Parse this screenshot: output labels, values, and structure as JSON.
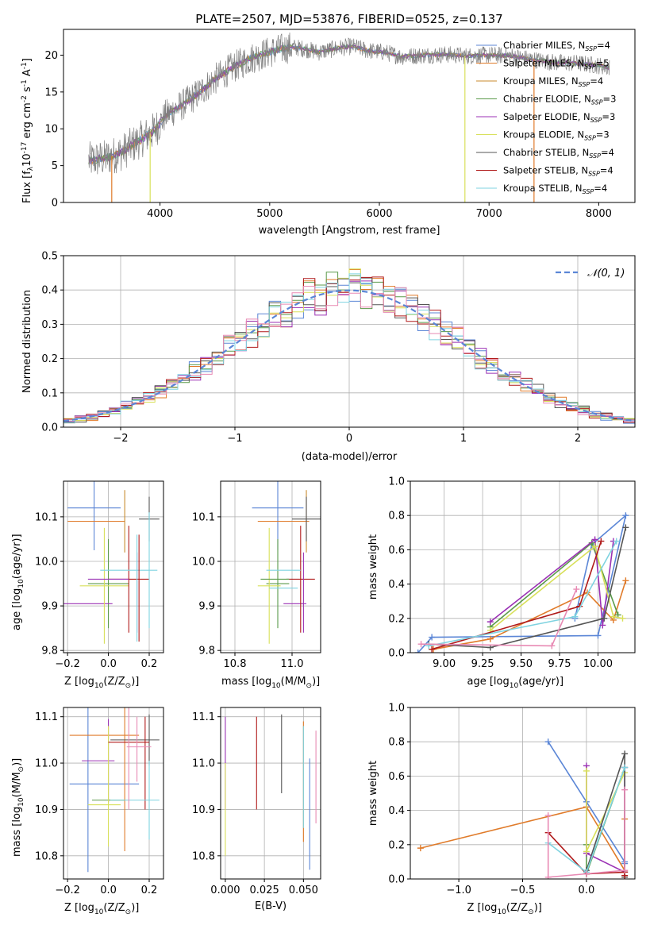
{
  "figure": {
    "title": "PLATE=2507, MJD=53876, FIBERID=0525, z=0.137"
  },
  "models": [
    {
      "name": "Chabrier MILES",
      "nssp": "4",
      "color": "#5b86d6"
    },
    {
      "name": "Salpeter MILES",
      "nssp": "5",
      "color": "#e07b2a"
    },
    {
      "name": "Kroupa MILES",
      "nssp": "4",
      "color": "#c88a2e"
    },
    {
      "name": "Chabrier ELODIE",
      "nssp": "3",
      "color": "#5a9a4a"
    },
    {
      "name": "Salpeter ELODIE",
      "nssp": "3",
      "color": "#9b32b5"
    },
    {
      "name": "Kroupa ELODIE",
      "nssp": "3",
      "color": "#d8e05a"
    },
    {
      "name": "Chabrier STELIB",
      "nssp": "4",
      "color": "#555555"
    },
    {
      "name": "Salpeter STELIB",
      "nssp": "4",
      "color": "#b01a1a"
    },
    {
      "name": "Kroupa STELIB",
      "nssp": "4",
      "color": "#7fd3e0"
    }
  ],
  "chart_data": [
    {
      "id": "spectrum",
      "type": "line",
      "xlabel": "wavelength [Angstrom, rest frame]",
      "ylabel_parts": [
        "Flux [f",
        "λ",
        "10",
        "-17",
        " erg cm",
        "-2",
        " s",
        "-1",
        " A",
        "-1",
        "]"
      ],
      "xlim": [
        3120,
        8330
      ],
      "ylim": [
        0,
        23.5
      ],
      "xticks": [
        4000,
        5000,
        6000,
        7000,
        8000
      ],
      "yticks": [
        0,
        5,
        10,
        15,
        20
      ],
      "legend_placement": "right",
      "continuum": {
        "x": [
          3350,
          3500,
          3650,
          3800,
          3950,
          4050,
          4200,
          4350,
          4500,
          4650,
          4800,
          4950,
          5100,
          5200,
          5300,
          5450,
          5600,
          5750,
          5900,
          6050,
          6200,
          6400,
          6600,
          6800,
          7000,
          7200,
          7400,
          7600,
          7800,
          8000,
          8100
        ],
        "y": [
          5.7,
          6.0,
          6.8,
          8.3,
          9.8,
          11.8,
          13.2,
          14.8,
          16.7,
          18.2,
          19.4,
          20.2,
          20.8,
          21.1,
          20.9,
          20.4,
          20.9,
          21.2,
          20.6,
          20.4,
          19.8,
          20.0,
          20.1,
          19.9,
          20.0,
          19.9,
          19.4,
          19.0,
          18.9,
          18.6,
          18.3
        ]
      },
      "dropouts": [
        {
          "x": 3560,
          "color": "#e07b2a"
        },
        {
          "x": 3910,
          "color": "#d8e05a"
        },
        {
          "x": 6780,
          "color": "#d8e05a"
        },
        {
          "x": 7410,
          "color": "#e07b2a"
        }
      ]
    },
    {
      "id": "residuals",
      "type": "step-histogram",
      "xlabel": "(data-model)/error",
      "ylabel": "Normed distribution",
      "xlim": [
        -2.5,
        2.5
      ],
      "ylim": [
        0,
        0.5
      ],
      "xticks": [
        -2,
        -1,
        0,
        1,
        2
      ],
      "yticks": [
        0.0,
        0.1,
        0.2,
        0.3,
        0.4,
        0.5
      ],
      "bin_width": 0.1,
      "reference_curve_label": "𝒩(0, 1)",
      "reference_curve_color": "#5b86d6",
      "legend_placement": "top-right",
      "grid": true
    },
    {
      "id": "age-vs-Z",
      "type": "errorbar",
      "xlabel_parts": [
        "Z [log",
        "10",
        "(Z/Z",
        "⊙",
        ")]"
      ],
      "ylabel_parts": [
        "age  [log",
        "10",
        "(age/yr)]"
      ],
      "xlim": [
        -0.22,
        0.27
      ],
      "ylim": [
        9.795,
        10.18
      ],
      "xticks": [
        -0.2,
        0.0,
        0.2
      ],
      "yticks": [
        9.8,
        9.9,
        10.0,
        10.1
      ],
      "grid": true,
      "points": [
        {
          "x": -0.07,
          "y": 10.12,
          "xerr": 0.13,
          "yerr": 0.095,
          "model": 0
        },
        {
          "x": -0.06,
          "y": 10.09,
          "xerr": 0.14,
          "yerr": 0.0,
          "model": 1
        },
        {
          "x": 0.08,
          "y": 10.09,
          "xerr": 0.0,
          "yerr": 0.07,
          "model": 2
        },
        {
          "x": 0.0,
          "y": 9.95,
          "xerr": 0.1,
          "yerr": 0.1,
          "model": 3
        },
        {
          "x": -0.1,
          "y": 9.905,
          "xerr": 0.12,
          "yerr": 0.0,
          "model": 4
        },
        {
          "x": -0.02,
          "y": 9.945,
          "xerr": 0.12,
          "yerr": 0.13,
          "model": 5
        },
        {
          "x": 0.2,
          "y": 10.095,
          "xerr": 0.05,
          "yerr": 0.05,
          "model": 6
        },
        {
          "x": 0.1,
          "y": 9.96,
          "xerr": 0.1,
          "yerr": 0.12,
          "model": 7
        },
        {
          "x": 0.1,
          "y": 9.98,
          "xerr": 0.14,
          "yerr": 0.0,
          "model": 8
        },
        {
          "x": 0.15,
          "y": 9.94,
          "xerr": 0.0,
          "yerr": 0.12,
          "model": 7
        },
        {
          "x": 0.2,
          "y": 9.98,
          "xerr": 0.0,
          "yerr": 0.13,
          "model": 8
        },
        {
          "x": 0.14,
          "y": 9.93,
          "xerr": 0.0,
          "yerr": 0.09,
          "model": 4
        },
        {
          "x": 0.0,
          "y": 9.96,
          "xerr": 0.1,
          "yerr": 0.0,
          "model": 4
        },
        {
          "x": 0.14,
          "y": 9.94,
          "xerr": 0.0,
          "yerr": 0.12,
          "model": 8
        }
      ]
    },
    {
      "id": "age-vs-mass",
      "type": "errorbar",
      "xlabel_parts": [
        "mass [log",
        "10",
        "(M/M",
        "⊙",
        ")]"
      ],
      "xlim": [
        10.75,
        11.1
      ],
      "ylim": [
        9.795,
        10.18
      ],
      "xticks": [
        10.8,
        11.0
      ],
      "yticks": [
        9.8,
        9.9,
        10.0,
        10.1
      ],
      "grid": true,
      "points": [
        {
          "x": 10.95,
          "y": 10.12,
          "xerr": 0.09,
          "yerr": 0.095,
          "model": 0
        },
        {
          "x": 10.97,
          "y": 10.09,
          "xerr": 0.09,
          "yerr": 0.0,
          "model": 1
        },
        {
          "x": 11.05,
          "y": 10.09,
          "xerr": 0.0,
          "yerr": 0.07,
          "model": 2
        },
        {
          "x": 10.95,
          "y": 9.95,
          "xerr": 0.04,
          "yerr": 0.1,
          "model": 3
        },
        {
          "x": 11.01,
          "y": 9.905,
          "xerr": 0.04,
          "yerr": 0.0,
          "model": 4
        },
        {
          "x": 10.92,
          "y": 9.945,
          "xerr": 0.04,
          "yerr": 0.13,
          "model": 5
        },
        {
          "x": 11.05,
          "y": 10.095,
          "xerr": 0.05,
          "yerr": 0.05,
          "model": 6
        },
        {
          "x": 11.03,
          "y": 9.96,
          "xerr": 0.05,
          "yerr": 0.12,
          "model": 7
        },
        {
          "x": 10.97,
          "y": 9.98,
          "xerr": 0.06,
          "yerr": 0.0,
          "model": 8
        },
        {
          "x": 10.94,
          "y": 9.96,
          "xerr": 0.05,
          "yerr": 0.0,
          "model": 3
        },
        {
          "x": 10.97,
          "y": 9.94,
          "xerr": 0.05,
          "yerr": 0.0,
          "model": 8
        },
        {
          "x": 11.04,
          "y": 9.93,
          "xerr": 0.0,
          "yerr": 0.09,
          "model": 4
        }
      ]
    },
    {
      "id": "weight-vs-age",
      "type": "line",
      "xlabel_parts": [
        "age  [log",
        "10",
        "(age/yr)]"
      ],
      "ylabel": "mass weight",
      "xlim": [
        8.78,
        10.24
      ],
      "ylim": [
        0.0,
        1.0
      ],
      "xticks": [
        9.0,
        9.25,
        9.5,
        9.75,
        10.0
      ],
      "xticklabels": [
        "9.00",
        "9.25",
        "9.50",
        "9.75",
        "10.00"
      ],
      "yticks": [
        0.0,
        0.2,
        0.4,
        0.6,
        0.8,
        1.0
      ],
      "grid": true,
      "series": [
        {
          "model": 0,
          "x": [
            8.83,
            8.92,
            10.0,
            10.18,
            9.96,
            9.85
          ],
          "y": [
            0.0,
            0.09,
            0.1,
            0.8,
            0.63,
            0.2
          ]
        },
        {
          "model": 1,
          "x": [
            8.93,
            9.3,
            9.93,
            10.1,
            10.18
          ],
          "y": [
            0.02,
            0.08,
            0.35,
            0.19,
            0.42
          ]
        },
        {
          "model": 3,
          "x": [
            9.3,
            9.96,
            10.13
          ],
          "y": [
            0.15,
            0.64,
            0.22
          ]
        },
        {
          "model": 4,
          "x": [
            9.3,
            9.98,
            10.03,
            10.1
          ],
          "y": [
            0.18,
            0.66,
            0.16,
            0.65
          ]
        },
        {
          "model": 5,
          "x": [
            9.3,
            9.98,
            10.1,
            10.16
          ],
          "y": [
            0.13,
            0.62,
            0.21,
            0.2
          ]
        },
        {
          "model": 6,
          "x": [
            8.9,
            9.3,
            10.04,
            10.18
          ],
          "y": [
            0.05,
            0.03,
            0.2,
            0.73
          ]
        },
        {
          "model": 7,
          "x": [
            8.92,
            9.88,
            10.02
          ],
          "y": [
            0.02,
            0.27,
            0.65
          ]
        },
        {
          "model": 8,
          "x": [
            8.9,
            9.85,
            10.12
          ],
          "y": [
            0.04,
            0.21,
            0.65
          ]
        },
        {
          "model": 9,
          "x": [
            8.85,
            9.7,
            9.86
          ],
          "y": [
            0.05,
            0.04,
            0.37
          ]
        }
      ]
    },
    {
      "id": "mass-vs-Z",
      "type": "errorbar",
      "xlabel_parts": [
        "Z [log",
        "10",
        "(Z/Z",
        "⊙",
        ")]"
      ],
      "ylabel_parts": [
        "mass [log",
        "10",
        "(M/M",
        "⊙",
        ")]"
      ],
      "xlim": [
        -0.22,
        0.27
      ],
      "ylim": [
        10.75,
        11.12
      ],
      "xticks": [
        -0.2,
        0.0,
        0.2
      ],
      "yticks": [
        10.8,
        10.9,
        11.0,
        11.1
      ],
      "grid": true,
      "points": [
        {
          "x": -0.02,
          "y": 10.955,
          "xerr": 0.17,
          "yerr": 0.0,
          "model": 0
        },
        {
          "x": -0.1,
          "y": 10.955,
          "xerr": 0.0,
          "yerr": 0.19,
          "model": 0
        },
        {
          "x": -0.02,
          "y": 11.06,
          "xerr": 0.17,
          "yerr": 0.0,
          "model": 1
        },
        {
          "x": 0.08,
          "y": 11.06,
          "xerr": 0.0,
          "yerr": 0.25,
          "model": 1
        },
        {
          "x": 0.0,
          "y": 10.92,
          "xerr": 0.08,
          "yerr": 0.0,
          "model": 3
        },
        {
          "x": -0.05,
          "y": 11.005,
          "xerr": 0.08,
          "yerr": 0.0,
          "model": 4
        },
        {
          "x": 0.0,
          "y": 11.005,
          "xerr": 0.0,
          "yerr": 0.09,
          "model": 4
        },
        {
          "x": -0.02,
          "y": 10.91,
          "xerr": 0.08,
          "yerr": 0.0,
          "model": 5
        },
        {
          "x": 0.0,
          "y": 10.95,
          "xerr": 0.0,
          "yerr": 0.13,
          "model": 5
        },
        {
          "x": 0.13,
          "y": 11.05,
          "xerr": 0.12,
          "yerr": 0.0,
          "model": 6
        },
        {
          "x": 0.2,
          "y": 11.05,
          "xerr": 0.0,
          "yerr": 0.055,
          "model": 6
        },
        {
          "x": 0.1,
          "y": 11.045,
          "xerr": 0.1,
          "yerr": 0.0,
          "model": 7
        },
        {
          "x": 0.18,
          "y": 11.0,
          "xerr": 0.0,
          "yerr": 0.1,
          "model": 7
        },
        {
          "x": 0.13,
          "y": 10.92,
          "xerr": 0.12,
          "yerr": 0.0,
          "model": 8
        },
        {
          "x": 0.2,
          "y": 10.92,
          "xerr": 0.0,
          "yerr": 0.085,
          "model": 8
        },
        {
          "x": 0.1,
          "y": 11.03,
          "xerr": 0.0,
          "yerr": 0.13,
          "model": 9
        },
        {
          "x": 0.14,
          "y": 11.03,
          "xerr": 0.0,
          "yerr": 0.07,
          "model": 9
        },
        {
          "x": 0.15,
          "y": 11.035,
          "xerr": 0.06,
          "yerr": 0.0,
          "model": 9
        }
      ]
    },
    {
      "id": "mass-vs-ebv",
      "type": "errorbar",
      "xlabel": "E(B-V)",
      "xlim": [
        -0.003,
        0.061
      ],
      "ylim": [
        10.75,
        11.12
      ],
      "xticks": [
        0.0,
        0.025,
        0.05
      ],
      "xticklabels": [
        "0.000",
        "0.025",
        "0.050"
      ],
      "yticks": [
        10.8,
        10.9,
        11.0,
        11.1
      ],
      "grid": true,
      "points": [
        {
          "x": 0.0,
          "y": 11.0,
          "xerr": 0.0,
          "yerr": 0.1,
          "model": 4
        },
        {
          "x": 0.0,
          "y": 10.9,
          "xerr": 0.0,
          "yerr": 0.1,
          "model": 5
        },
        {
          "x": 0.02,
          "y": 11.0,
          "xerr": 0.0,
          "yerr": 0.1,
          "model": 7
        },
        {
          "x": 0.036,
          "y": 11.02,
          "xerr": 0.0,
          "yerr": 0.085,
          "model": 6
        },
        {
          "x": 0.05,
          "y": 10.96,
          "xerr": 0.0,
          "yerr": 0.13,
          "model": 1
        },
        {
          "x": 0.05,
          "y": 10.97,
          "xerr": 0.0,
          "yerr": 0.11,
          "model": 8
        },
        {
          "x": 0.054,
          "y": 10.89,
          "xerr": 0.0,
          "yerr": 0.12,
          "model": 0
        },
        {
          "x": 0.058,
          "y": 10.97,
          "xerr": 0.0,
          "yerr": 0.1,
          "model": 9
        }
      ]
    },
    {
      "id": "weight-vs-Z",
      "type": "line",
      "xlabel_parts": [
        "Z [log",
        "10",
        "(Z/Z",
        "⊙",
        ")]"
      ],
      "ylabel": "mass weight",
      "xlim": [
        -1.38,
        0.38
      ],
      "ylim": [
        0.0,
        1.0
      ],
      "xticks": [
        -1.0,
        -0.5,
        0.0
      ],
      "xticklabels": [
        "−1.0",
        "−0.5",
        "0.0"
      ],
      "yticks": [
        0.0,
        0.2,
        0.4,
        0.6,
        0.8,
        1.0
      ],
      "grid": true,
      "series": [
        {
          "model": 0,
          "x": [
            -0.3,
            0.0,
            0.3,
            0.3
          ],
          "y": [
            0.8,
            0.45,
            0.1,
            0.09
          ]
        },
        {
          "model": 1,
          "x": [
            -1.3,
            0.0,
            0.3,
            0.3
          ],
          "y": [
            0.18,
            0.42,
            0.05,
            0.35
          ]
        },
        {
          "model": 3,
          "x": [
            0.0,
            0.0,
            0.3
          ],
          "y": [
            0.2,
            0.03,
            0.65
          ]
        },
        {
          "model": 4,
          "x": [
            0.0,
            0.0,
            0.3,
            0.3
          ],
          "y": [
            0.66,
            0.15,
            0.04,
            0.65
          ]
        },
        {
          "model": 5,
          "x": [
            0.0,
            0.0,
            0.3
          ],
          "y": [
            0.63,
            0.16,
            0.62
          ]
        },
        {
          "model": 6,
          "x": [
            0.0,
            0.0,
            0.3,
            0.3
          ],
          "y": [
            0.03,
            0.05,
            0.73,
            0.01
          ]
        },
        {
          "model": 7,
          "x": [
            -0.3,
            0.0,
            0.3,
            0.3
          ],
          "y": [
            0.27,
            0.03,
            0.04,
            0.02
          ]
        },
        {
          "model": 8,
          "x": [
            -0.3,
            0.0,
            0.3
          ],
          "y": [
            0.21,
            0.04,
            0.65
          ]
        },
        {
          "model": 9,
          "x": [
            -0.3,
            -0.3,
            0.0,
            0.3,
            0.3
          ],
          "y": [
            0.37,
            0.01,
            0.03,
            0.05,
            0.52
          ]
        }
      ]
    }
  ],
  "extra_series_colors": {
    "9": "#e88ab4"
  }
}
